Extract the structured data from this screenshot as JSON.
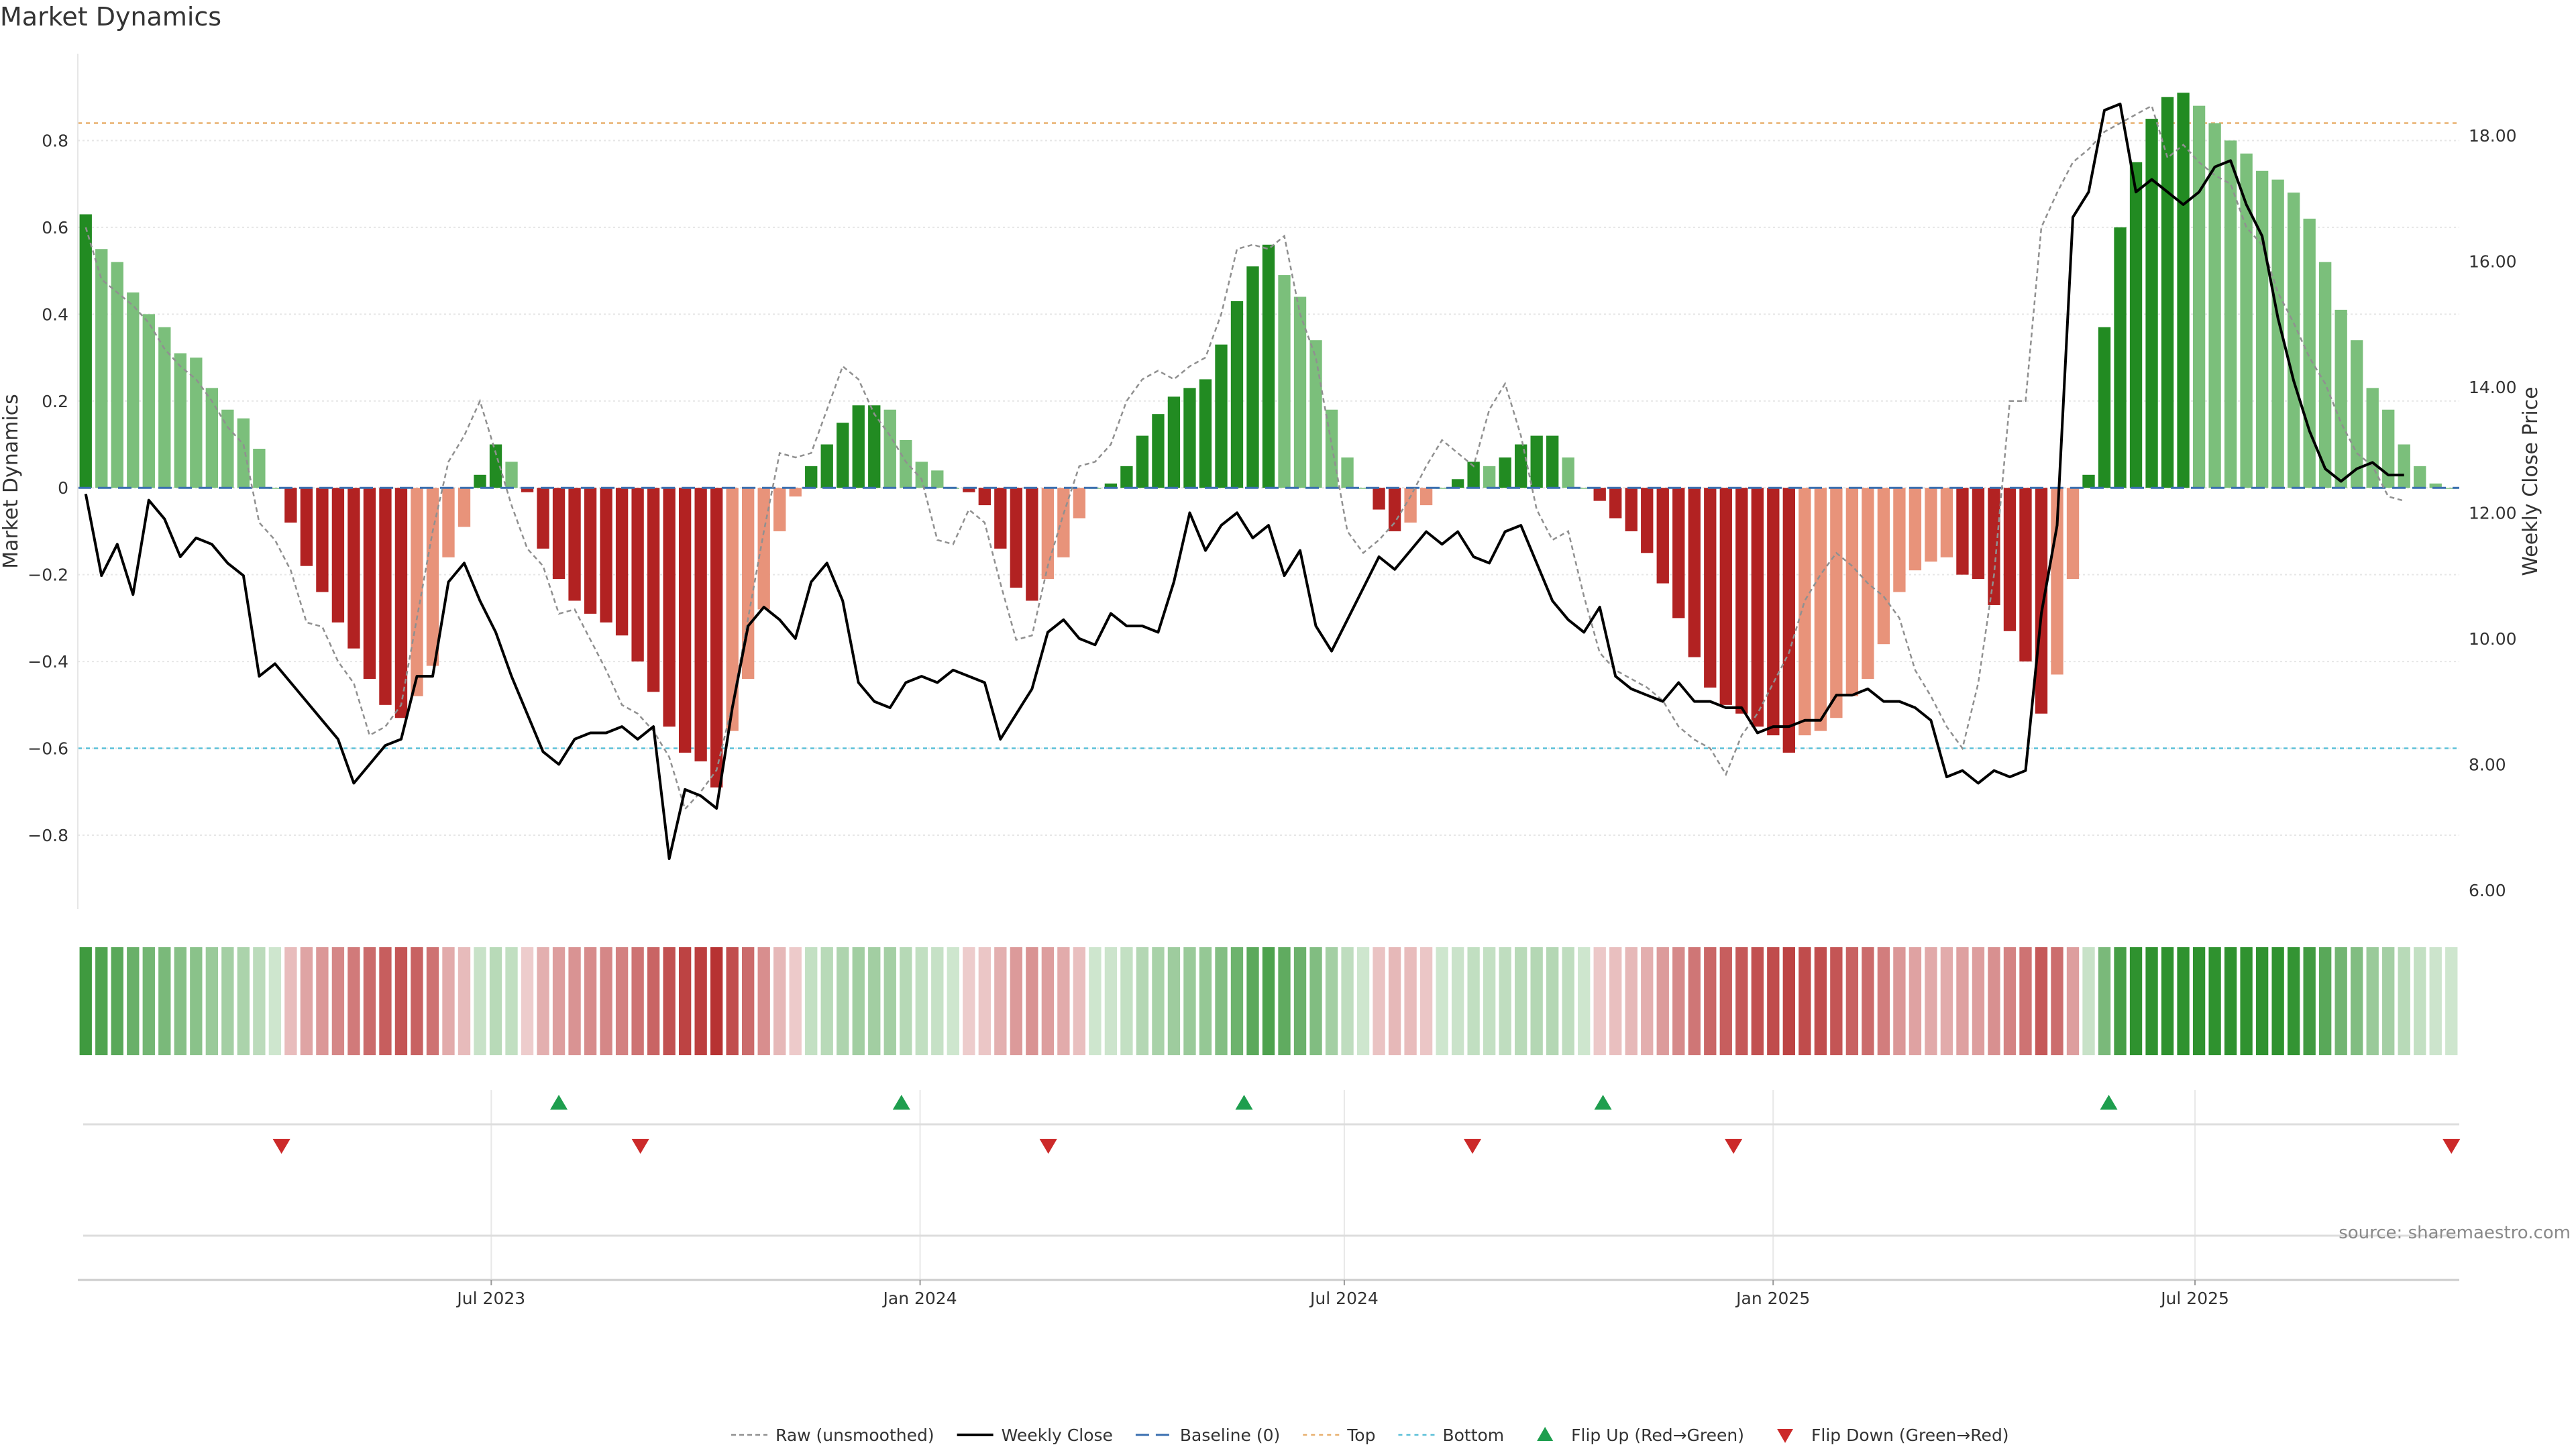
{
  "chart_data": {
    "type": "bar",
    "title": "Market Dynamics",
    "ylabel_left": "Market Dynamics",
    "ylabel_right": "Weekly Close Price",
    "source": "source: sharemaestro.com",
    "ylim_left": [
      -0.97,
      1.0
    ],
    "ylim_right": [
      5.7,
      19.3
    ],
    "yticks_left": [
      {
        "v": 0.8,
        "label": "0.8"
      },
      {
        "v": 0.6,
        "label": "0.6"
      },
      {
        "v": 0.4,
        "label": "0.4"
      },
      {
        "v": 0.2,
        "label": "0.2"
      },
      {
        "v": 0,
        "label": "0"
      },
      {
        "v": -0.2,
        "label": "−0.2"
      },
      {
        "v": -0.4,
        "label": "−0.4"
      },
      {
        "v": -0.6,
        "label": "−0.6"
      },
      {
        "v": -0.8,
        "label": "−0.8"
      }
    ],
    "yticks_right": [
      {
        "v": 18,
        "label": "18.00"
      },
      {
        "v": 16,
        "label": "16.00"
      },
      {
        "v": 14,
        "label": "14.00"
      },
      {
        "v": 12,
        "label": "12.00"
      },
      {
        "v": 10,
        "label": "10.00"
      },
      {
        "v": 8,
        "label": "8.00"
      },
      {
        "v": 6,
        "label": "6.00"
      }
    ],
    "x_start": "2023-01-08",
    "x_end": "2025-10-19",
    "xticks": [
      {
        "date": "2023-07-01",
        "label": "Jul 2023"
      },
      {
        "date": "2024-01-01",
        "label": "Jan 2024"
      },
      {
        "date": "2024-07-01",
        "label": "Jul 2024"
      },
      {
        "date": "2025-01-01",
        "label": "Jan 2025"
      },
      {
        "date": "2025-07-01",
        "label": "Jul 2025"
      }
    ],
    "top_level": 0.84,
    "bottom_level": -0.6,
    "baseline": 0,
    "smoothed_values": [
      0.63,
      0.55,
      0.52,
      0.45,
      0.4,
      0.37,
      0.31,
      0.3,
      0.23,
      0.18,
      0.16,
      0.09,
      0,
      -0.08,
      -0.18,
      -0.24,
      -0.31,
      -0.37,
      -0.44,
      -0.5,
      -0.53,
      -0.48,
      -0.41,
      -0.16,
      -0.09,
      0.03,
      0.1,
      0.06,
      -0.01,
      -0.14,
      -0.21,
      -0.26,
      -0.29,
      -0.31,
      -0.34,
      -0.4,
      -0.47,
      -0.55,
      -0.61,
      -0.63,
      -0.69,
      -0.56,
      -0.44,
      -0.28,
      -0.1,
      -0.02,
      0.05,
      0.1,
      0.15,
      0.19,
      0.19,
      0.18,
      0.11,
      0.06,
      0.04,
      0,
      -0.01,
      -0.04,
      -0.14,
      -0.23,
      -0.26,
      -0.21,
      -0.16,
      -0.07,
      0,
      0.01,
      0.05,
      0.12,
      0.17,
      0.21,
      0.23,
      0.25,
      0.33,
      0.43,
      0.51,
      0.56,
      0.49,
      0.44,
      0.34,
      0.18,
      0.07,
      0,
      -0.05,
      -0.1,
      -0.08,
      -0.04,
      0,
      0.02,
      0.06,
      0.05,
      0.07,
      0.1,
      0.12,
      0.12,
      0.07,
      0,
      -0.03,
      -0.07,
      -0.1,
      -0.15,
      -0.22,
      -0.3,
      -0.39,
      -0.46,
      -0.5,
      -0.52,
      -0.55,
      -0.57,
      -0.61,
      -0.57,
      -0.56,
      -0.53,
      -0.48,
      -0.44,
      -0.36,
      -0.24,
      -0.19,
      -0.17,
      -0.16,
      -0.2,
      -0.21,
      -0.27,
      -0.33,
      -0.4,
      -0.52,
      -0.43,
      -0.21,
      0.03,
      0.37,
      0.6,
      0.75,
      0.85,
      0.9,
      0.91,
      0.88,
      0.84,
      0.8,
      0.77,
      0.73,
      0.71,
      0.68,
      0.62,
      0.52,
      0.41,
      0.34,
      0.23,
      0.18,
      0.1,
      0.05,
      0.01,
      0
    ],
    "raw_values": [
      0.6,
      0.48,
      0.45,
      0.42,
      0.38,
      0.32,
      0.28,
      0.25,
      0.2,
      0.14,
      0.1,
      -0.08,
      -0.12,
      -0.19,
      -0.31,
      -0.32,
      -0.4,
      -0.45,
      -0.57,
      -0.55,
      -0.5,
      -0.3,
      -0.1,
      0.06,
      0.12,
      0.2,
      0.08,
      -0.04,
      -0.14,
      -0.18,
      -0.29,
      -0.28,
      -0.35,
      -0.42,
      -0.5,
      -0.52,
      -0.56,
      -0.62,
      -0.74,
      -0.7,
      -0.65,
      -0.5,
      -0.3,
      -0.1,
      0.08,
      0.07,
      0.08,
      0.18,
      0.28,
      0.25,
      0.17,
      0.12,
      0.06,
      0.02,
      -0.12,
      -0.13,
      -0.05,
      -0.08,
      -0.22,
      -0.35,
      -0.34,
      -0.18,
      -0.06,
      0.05,
      0.06,
      0.1,
      0.2,
      0.25,
      0.27,
      0.25,
      0.28,
      0.3,
      0.4,
      0.55,
      0.56,
      0.55,
      0.58,
      0.4,
      0.3,
      0.1,
      -0.1,
      -0.15,
      -0.12,
      -0.08,
      -0.02,
      0.05,
      0.11,
      0.08,
      0.05,
      0.18,
      0.24,
      0.12,
      -0.05,
      -0.12,
      -0.1,
      -0.25,
      -0.38,
      -0.42,
      -0.44,
      -0.46,
      -0.49,
      -0.55,
      -0.58,
      -0.6,
      -0.66,
      -0.57,
      -0.52,
      -0.45,
      -0.38,
      -0.26,
      -0.2,
      -0.15,
      -0.18,
      -0.22,
      -0.25,
      -0.3,
      -0.42,
      -0.48,
      -0.55,
      -0.6,
      -0.45,
      -0.2,
      0.2,
      0.2,
      0.6,
      0.68,
      0.75,
      0.78,
      0.82,
      0.84,
      0.86,
      0.88,
      0.76,
      0.79,
      0.75,
      0.72,
      0.7,
      0.6,
      0.56,
      0.45,
      0.38,
      0.3,
      0.24,
      0.15,
      0.08,
      0.05,
      -0.02,
      -0.03
    ],
    "weekly_close": [
      12.3,
      11.0,
      11.5,
      10.7,
      12.2,
      11.9,
      11.3,
      11.6,
      11.5,
      11.2,
      11.0,
      9.4,
      9.6,
      9.3,
      9.0,
      8.7,
      8.4,
      7.7,
      8.0,
      8.3,
      8.4,
      9.4,
      9.4,
      10.9,
      11.2,
      10.6,
      10.1,
      9.4,
      8.8,
      8.2,
      8.0,
      8.4,
      8.5,
      8.5,
      8.6,
      8.4,
      8.6,
      6.5,
      7.6,
      7.5,
      7.3,
      8.9,
      10.2,
      10.5,
      10.3,
      10.0,
      10.9,
      11.2,
      10.6,
      9.3,
      9.0,
      8.9,
      9.3,
      9.4,
      9.3,
      9.5,
      9.4,
      9.3,
      8.4,
      8.8,
      9.2,
      10.1,
      10.3,
      10.0,
      9.9,
      10.4,
      10.2,
      10.2,
      10.1,
      10.9,
      12.0,
      11.4,
      11.8,
      12.0,
      11.6,
      11.8,
      11.0,
      11.4,
      10.2,
      9.8,
      10.3,
      10.8,
      11.3,
      11.1,
      11.4,
      11.7,
      11.5,
      11.7,
      11.3,
      11.2,
      11.7,
      11.8,
      11.2,
      10.6,
      10.3,
      10.1,
      10.5,
      9.4,
      9.2,
      9.1,
      9.0,
      9.3,
      9.0,
      9.0,
      8.9,
      8.9,
      8.5,
      8.6,
      8.6,
      8.7,
      8.7,
      9.1,
      9.1,
      9.2,
      9.0,
      9.0,
      8.9,
      8.7,
      7.8,
      7.9,
      7.7,
      7.9,
      7.8,
      7.9,
      10.4,
      11.8,
      16.7,
      17.1,
      18.4,
      18.5,
      17.1,
      17.3,
      17.1,
      16.9,
      17.1,
      17.5,
      17.6,
      16.9,
      16.4,
      15.1,
      14.1,
      13.3,
      12.7,
      12.5,
      12.7,
      12.8,
      12.6,
      12.6
    ],
    "flips_up": [
      "2023-07-30",
      "2023-12-24",
      "2024-05-19",
      "2024-10-20",
      "2025-05-25"
    ],
    "flips_down": [
      "2023-04-02",
      "2023-09-03",
      "2024-02-25",
      "2024-08-25",
      "2024-12-15",
      "2025-10-19"
    ],
    "colors": {
      "strong_up": "#228b22",
      "weak_up": "#7bbf7b",
      "strong_down": "#b22222",
      "weak_down": "#e8937a",
      "raw_line": "#909090",
      "close_line": "#000000",
      "baseline": "#3a6fb0",
      "top": "#e8b06e",
      "bottom": "#5bc0d8",
      "flip_up": "#1e9e4e",
      "flip_down": "#cc2a2a",
      "grid": "#e6e6e6"
    },
    "legend": [
      {
        "key": "raw",
        "label": "Raw (unsmoothed)"
      },
      {
        "key": "close",
        "label": "Weekly Close"
      },
      {
        "key": "baseline",
        "label": "Baseline (0)"
      },
      {
        "key": "top",
        "label": "Top"
      },
      {
        "key": "bottom",
        "label": "Bottom"
      },
      {
        "key": "flip_up",
        "label": "Flip Up (Red→Green)"
      },
      {
        "key": "flip_down",
        "label": "Flip Down (Green→Red)"
      }
    ]
  }
}
